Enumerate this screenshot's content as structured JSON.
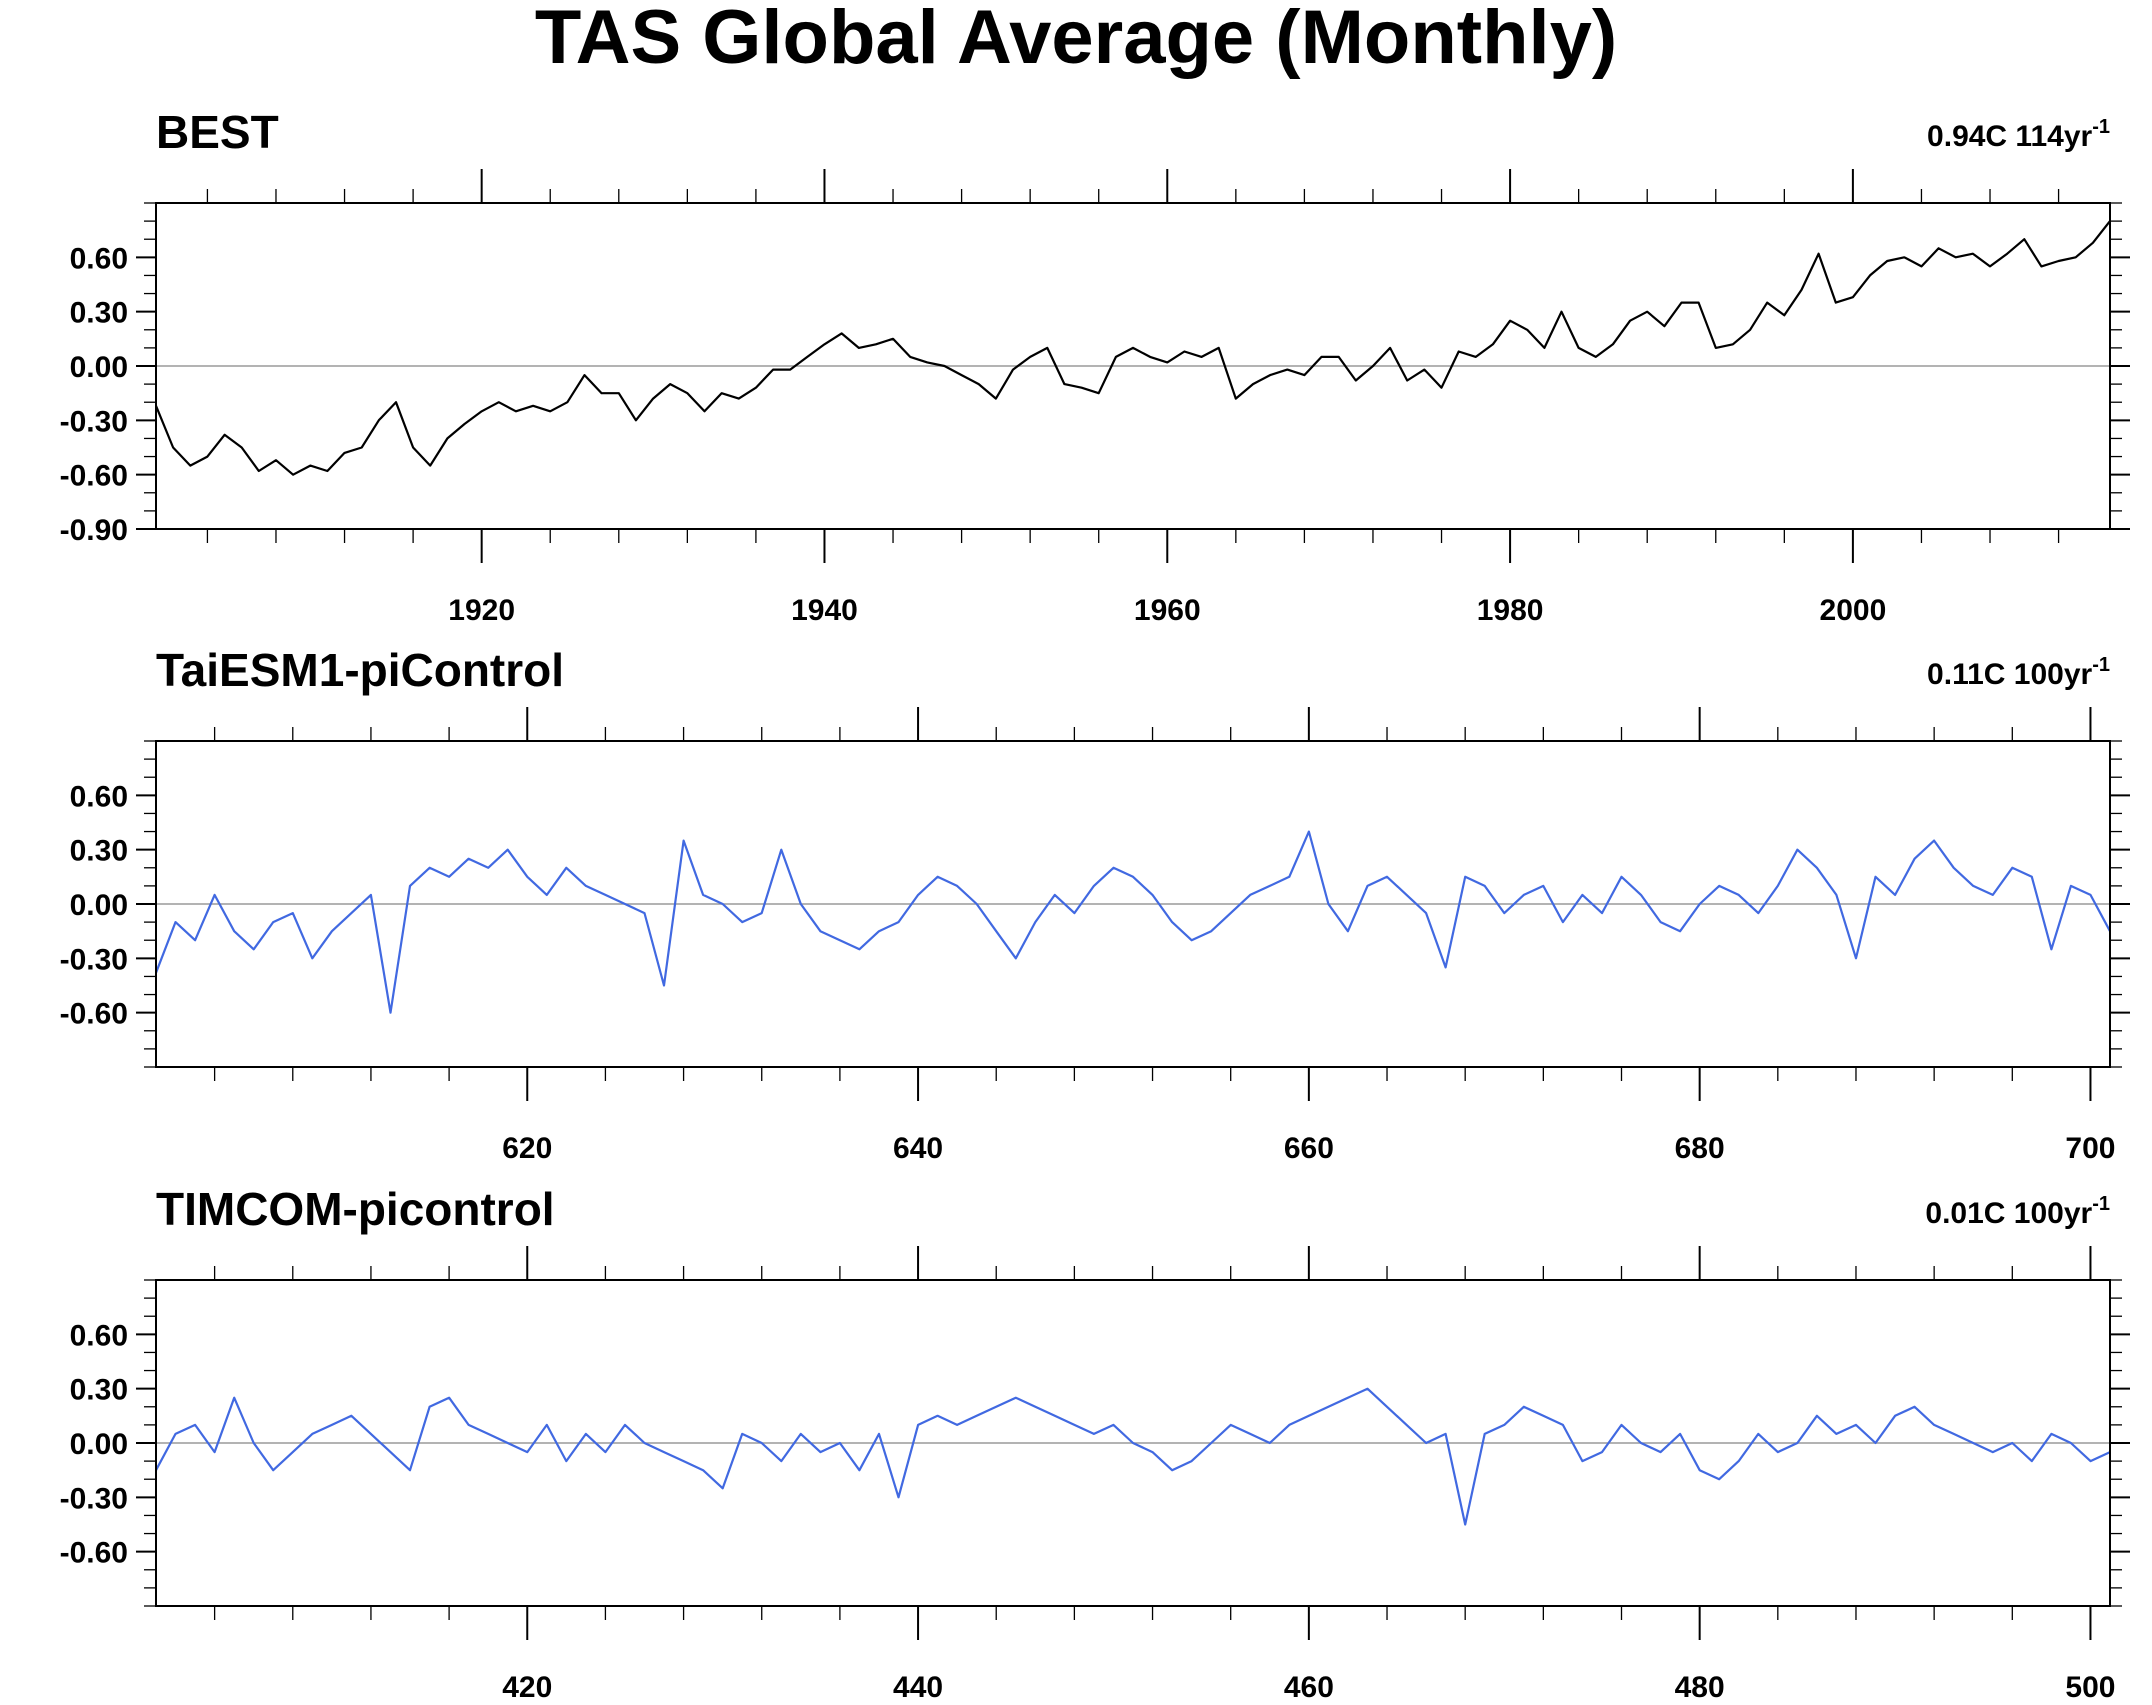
{
  "figure": {
    "title": "TAS Global Average (Monthly)"
  },
  "chart_data": [
    {
      "type": "line",
      "title": "BEST",
      "trend": {
        "value": "0.94C 114yr",
        "exponent": "-1"
      },
      "xlim": [
        1901,
        2015
      ],
      "ylim": [
        -0.9,
        0.9
      ],
      "xticks": [
        1920,
        1940,
        1960,
        1980,
        2000
      ],
      "xtick_labels": [
        "1920",
        "1940",
        "1960",
        "1980",
        "2000"
      ],
      "yticks": [
        0.6,
        0.3,
        0.0,
        -0.3,
        -0.6,
        -0.9
      ],
      "ytick_labels": [
        "0.60",
        "0.30",
        "0.00",
        "-0.30",
        "-0.60",
        "-0.90"
      ],
      "reference_line": 0.0,
      "series": [
        {
          "color": "#000000",
          "x": [
            1901,
            1902,
            1903,
            1904,
            1905,
            1906,
            1907,
            1908,
            1909,
            1910,
            1911,
            1912,
            1913,
            1914,
            1915,
            1916,
            1917,
            1918,
            1919,
            1920,
            1921,
            1922,
            1923,
            1924,
            1925,
            1926,
            1927,
            1928,
            1929,
            1930,
            1931,
            1932,
            1933,
            1934,
            1935,
            1936,
            1937,
            1938,
            1939,
            1940,
            1941,
            1942,
            1943,
            1944,
            1945,
            1946,
            1947,
            1948,
            1949,
            1950,
            1951,
            1952,
            1953,
            1954,
            1955,
            1956,
            1957,
            1958,
            1959,
            1960,
            1961,
            1962,
            1963,
            1964,
            1965,
            1966,
            1967,
            1968,
            1969,
            1970,
            1971,
            1972,
            1973,
            1974,
            1975,
            1976,
            1977,
            1978,
            1979,
            1980,
            1981,
            1982,
            1983,
            1984,
            1985,
            1986,
            1987,
            1988,
            1989,
            1990,
            1991,
            1992,
            1993,
            1994,
            1995,
            1996,
            1997,
            1998,
            1999,
            2000,
            2001,
            2002,
            2003,
            2004,
            2005,
            2006,
            2007,
            2008,
            2009,
            2010,
            2011,
            2012,
            2013,
            2014,
            2015
          ],
          "y": [
            -0.22,
            -0.45,
            -0.55,
            -0.5,
            -0.38,
            -0.45,
            -0.58,
            -0.52,
            -0.6,
            -0.55,
            -0.58,
            -0.48,
            -0.45,
            -0.3,
            -0.2,
            -0.45,
            -0.55,
            -0.4,
            -0.32,
            -0.25,
            -0.2,
            -0.25,
            -0.22,
            -0.25,
            -0.2,
            -0.05,
            -0.15,
            -0.15,
            -0.3,
            -0.18,
            -0.1,
            -0.15,
            -0.25,
            -0.15,
            -0.18,
            -0.12,
            -0.02,
            -0.02,
            0.05,
            0.12,
            0.18,
            0.1,
            0.12,
            0.15,
            0.05,
            0.02,
            0.0,
            -0.05,
            -0.1,
            -0.18,
            -0.02,
            0.05,
            0.1,
            -0.1,
            -0.12,
            -0.15,
            0.05,
            0.1,
            0.05,
            0.02,
            0.08,
            0.05,
            0.1,
            -0.18,
            -0.1,
            -0.05,
            -0.02,
            -0.05,
            0.05,
            0.05,
            -0.08,
            0.0,
            0.1,
            -0.08,
            -0.02,
            -0.12,
            0.08,
            0.05,
            0.12,
            0.25,
            0.2,
            0.1,
            0.3,
            0.1,
            0.05,
            0.12,
            0.25,
            0.3,
            0.22,
            0.35,
            0.35,
            0.1,
            0.12,
            0.2,
            0.35,
            0.28,
            0.42,
            0.62,
            0.35,
            0.38,
            0.5,
            0.58,
            0.6,
            0.55,
            0.65,
            0.6,
            0.62,
            0.55,
            0.62,
            0.7,
            0.55,
            0.58,
            0.6,
            0.68,
            0.8
          ]
        }
      ]
    },
    {
      "type": "line",
      "title": "TaiESM1-piControl",
      "trend": {
        "value": "0.11C 100yr",
        "exponent": "-1"
      },
      "xlim": [
        601,
        701
      ],
      "ylim": [
        -0.9,
        0.9
      ],
      "xticks": [
        620,
        640,
        660,
        680,
        700
      ],
      "xtick_labels": [
        "620",
        "640",
        "660",
        "680",
        "700"
      ],
      "yticks": [
        0.6,
        0.3,
        0.0,
        -0.3,
        -0.6
      ],
      "ytick_labels": [
        "0.60",
        "0.30",
        "0.00",
        "-0.30",
        "-0.60"
      ],
      "reference_line": 0.0,
      "series": [
        {
          "color": "#4169e1",
          "x": [
            601,
            602,
            603,
            604,
            605,
            606,
            607,
            608,
            609,
            610,
            611,
            612,
            613,
            614,
            615,
            616,
            617,
            618,
            619,
            620,
            621,
            622,
            623,
            624,
            625,
            626,
            627,
            628,
            629,
            630,
            631,
            632,
            633,
            634,
            635,
            636,
            637,
            638,
            639,
            640,
            641,
            642,
            643,
            644,
            645,
            646,
            647,
            648,
            649,
            650,
            651,
            652,
            653,
            654,
            655,
            656,
            657,
            658,
            659,
            660,
            661,
            662,
            663,
            664,
            665,
            666,
            667,
            668,
            669,
            670,
            671,
            672,
            673,
            674,
            675,
            676,
            677,
            678,
            679,
            680,
            681,
            682,
            683,
            684,
            685,
            686,
            687,
            688,
            689,
            690,
            691,
            692,
            693,
            694,
            695,
            696,
            697,
            698,
            699,
            700,
            701
          ],
          "y": [
            -0.38,
            -0.1,
            -0.2,
            0.05,
            -0.15,
            -0.25,
            -0.1,
            -0.05,
            -0.3,
            -0.15,
            -0.05,
            0.05,
            -0.6,
            0.1,
            0.2,
            0.15,
            0.25,
            0.2,
            0.3,
            0.15,
            0.05,
            0.2,
            0.1,
            0.05,
            0.0,
            -0.05,
            -0.45,
            0.35,
            0.05,
            0.0,
            -0.1,
            -0.05,
            0.3,
            0.0,
            -0.15,
            -0.2,
            -0.25,
            -0.15,
            -0.1,
            0.05,
            0.15,
            0.1,
            0.0,
            -0.15,
            -0.3,
            -0.1,
            0.05,
            -0.05,
            0.1,
            0.2,
            0.15,
            0.05,
            -0.1,
            -0.2,
            -0.15,
            -0.05,
            0.05,
            0.1,
            0.15,
            0.4,
            0.0,
            -0.15,
            0.1,
            0.15,
            0.05,
            -0.05,
            -0.35,
            0.15,
            0.1,
            -0.05,
            0.05,
            0.1,
            -0.1,
            0.05,
            -0.05,
            0.15,
            0.05,
            -0.1,
            -0.15,
            0.0,
            0.1,
            0.05,
            -0.05,
            0.1,
            0.3,
            0.2,
            0.05,
            -0.3,
            0.15,
            0.05,
            0.25,
            0.35,
            0.2,
            0.1,
            0.05,
            0.2,
            0.15,
            -0.25,
            0.1,
            0.05,
            -0.15
          ]
        }
      ]
    },
    {
      "type": "line",
      "title": "TIMCOM-picontrol",
      "trend": {
        "value": "0.01C 100yr",
        "exponent": "-1"
      },
      "xlim": [
        401,
        501
      ],
      "ylim": [
        -0.9,
        0.9
      ],
      "xticks": [
        420,
        440,
        460,
        480,
        500
      ],
      "xtick_labels": [
        "420",
        "440",
        "460",
        "480",
        "500"
      ],
      "yticks": [
        0.6,
        0.3,
        0.0,
        -0.3,
        -0.6
      ],
      "ytick_labels": [
        "0.60",
        "0.30",
        "0.00",
        "-0.30",
        "-0.60"
      ],
      "reference_line": 0.0,
      "series": [
        {
          "color": "#4169e1",
          "x": [
            401,
            402,
            403,
            404,
            405,
            406,
            407,
            408,
            409,
            410,
            411,
            412,
            413,
            414,
            415,
            416,
            417,
            418,
            419,
            420,
            421,
            422,
            423,
            424,
            425,
            426,
            427,
            428,
            429,
            430,
            431,
            432,
            433,
            434,
            435,
            436,
            437,
            438,
            439,
            440,
            441,
            442,
            443,
            444,
            445,
            446,
            447,
            448,
            449,
            450,
            451,
            452,
            453,
            454,
            455,
            456,
            457,
            458,
            459,
            460,
            461,
            462,
            463,
            464,
            465,
            466,
            467,
            468,
            469,
            470,
            471,
            472,
            473,
            474,
            475,
            476,
            477,
            478,
            479,
            480,
            481,
            482,
            483,
            484,
            485,
            486,
            487,
            488,
            489,
            490,
            491,
            492,
            493,
            494,
            495,
            496,
            497,
            498,
            499,
            500,
            501
          ],
          "y": [
            -0.15,
            0.05,
            0.1,
            -0.05,
            0.25,
            0.0,
            -0.15,
            -0.05,
            0.05,
            0.1,
            0.15,
            0.05,
            -0.05,
            -0.15,
            0.2,
            0.25,
            0.1,
            0.05,
            0.0,
            -0.05,
            0.1,
            -0.1,
            0.05,
            -0.05,
            0.1,
            0.0,
            -0.05,
            -0.1,
            -0.15,
            -0.25,
            0.05,
            0.0,
            -0.1,
            0.05,
            -0.05,
            0.0,
            -0.15,
            0.05,
            -0.3,
            0.1,
            0.15,
            0.1,
            0.15,
            0.2,
            0.25,
            0.2,
            0.15,
            0.1,
            0.05,
            0.1,
            0.0,
            -0.05,
            -0.15,
            -0.1,
            0.0,
            0.1,
            0.05,
            0.0,
            0.1,
            0.15,
            0.2,
            0.25,
            0.3,
            0.2,
            0.1,
            0.0,
            0.05,
            -0.45,
            0.05,
            0.1,
            0.2,
            0.15,
            0.1,
            -0.1,
            -0.05,
            0.1,
            0.0,
            -0.05,
            0.05,
            -0.15,
            -0.2,
            -0.1,
            0.05,
            -0.05,
            0.0,
            0.15,
            0.05,
            0.1,
            0.0,
            0.15,
            0.2,
            0.1,
            0.05,
            0.0,
            -0.05,
            0.0,
            -0.1,
            0.05,
            0.0,
            -0.1,
            -0.05
          ]
        }
      ]
    }
  ]
}
